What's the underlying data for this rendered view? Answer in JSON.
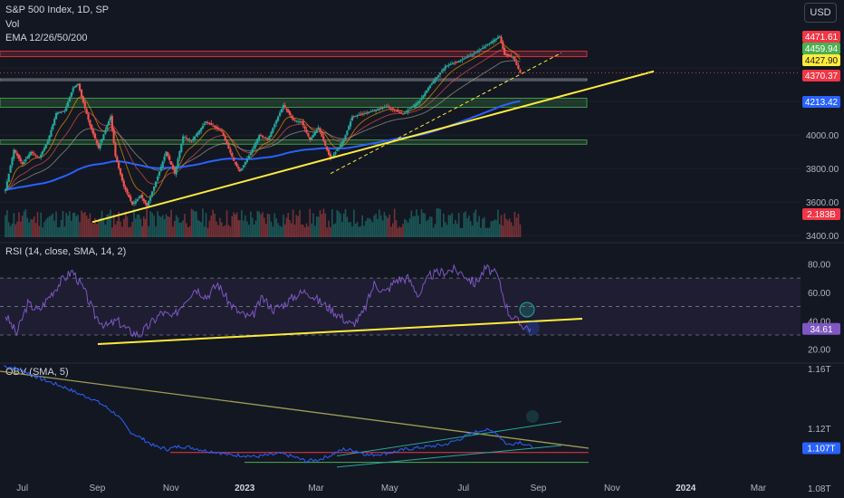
{
  "header": {
    "symbol_line": "S&P 500 Index, 1D, SP",
    "volume_label": "Vol",
    "ema_label": "EMA 12/26/50/200",
    "currency_button": "USD"
  },
  "rsi_panel": {
    "title": "RSI (14, close, SMA, 14, 2)"
  },
  "obv_panel": {
    "title": "OBV (SMA, 5)"
  },
  "colors": {
    "background": "#131722",
    "candle_up": "#26a69a",
    "candle_down": "#ef5350",
    "ema_200": "#2962ff",
    "trendline": "#ffeb3b",
    "rsi_line": "#7e57c2",
    "obv_line": "#2962ff"
  },
  "chart_data": [
    {
      "type": "candlestick",
      "title": "S&P 500 Index, 1D, SP",
      "x_tick_labels": [
        "Jul",
        "Sep",
        "Nov",
        "2023",
        "Mar",
        "May",
        "Jul",
        "Sep",
        "Nov",
        "2024",
        "Mar"
      ],
      "y_tick_labels": [
        "3400.00",
        "3600.00",
        "3800.00",
        "4000.00"
      ],
      "ylim": [
        3390,
        4600
      ],
      "price_labels": [
        {
          "label": "4471.61",
          "color": "#f23645"
        },
        {
          "label": "4459.94",
          "color": "#4caf50"
        },
        {
          "label": "4427.90",
          "color": "#ffeb3b"
        },
        {
          "label": "4370.37",
          "color": "#f23645"
        },
        {
          "label": "4213.42",
          "color": "#2962ff"
        },
        {
          "label": "2.183B",
          "color": "#f23645"
        }
      ],
      "close_series": [
        [
          "2022-06-17",
          3675
        ],
        [
          "2022-06-24",
          3911
        ],
        [
          "2022-07-01",
          3825
        ],
        [
          "2022-07-08",
          3899
        ],
        [
          "2022-07-15",
          3863
        ],
        [
          "2022-07-22",
          3962
        ],
        [
          "2022-07-29",
          4130
        ],
        [
          "2022-08-05",
          4145
        ],
        [
          "2022-08-12",
          4280
        ],
        [
          "2022-08-16",
          4305
        ],
        [
          "2022-08-19",
          4228
        ],
        [
          "2022-08-26",
          4057
        ],
        [
          "2022-09-02",
          3924
        ],
        [
          "2022-09-12",
          4110
        ],
        [
          "2022-09-16",
          3873
        ],
        [
          "2022-09-23",
          3693
        ],
        [
          "2022-09-30",
          3585
        ],
        [
          "2022-10-07",
          3639
        ],
        [
          "2022-10-12",
          3577
        ],
        [
          "2022-10-21",
          3752
        ],
        [
          "2022-10-28",
          3901
        ],
        [
          "2022-11-04",
          3770
        ],
        [
          "2022-11-11",
          3992
        ],
        [
          "2022-11-18",
          3965
        ],
        [
          "2022-11-30",
          4080
        ],
        [
          "2022-12-13",
          4019
        ],
        [
          "2022-12-23",
          3845
        ],
        [
          "2022-12-28",
          3783
        ],
        [
          "2023-01-06",
          3895
        ],
        [
          "2023-01-13",
          3999
        ],
        [
          "2023-01-20",
          3972
        ],
        [
          "2023-02-02",
          4179
        ],
        [
          "2023-02-10",
          4090
        ],
        [
          "2023-02-17",
          4079
        ],
        [
          "2023-02-24",
          3970
        ],
        [
          "2023-03-03",
          4045
        ],
        [
          "2023-03-13",
          3855
        ],
        [
          "2023-03-24",
          3971
        ],
        [
          "2023-03-31",
          4109
        ],
        [
          "2023-04-14",
          4137
        ],
        [
          "2023-04-28",
          4169
        ],
        [
          "2023-05-12",
          4124
        ],
        [
          "2023-05-26",
          4205
        ],
        [
          "2023-06-02",
          4282
        ],
        [
          "2023-06-16",
          4410
        ],
        [
          "2023-06-30",
          4450
        ],
        [
          "2023-07-14",
          4505
        ],
        [
          "2023-07-31",
          4589
        ],
        [
          "2023-08-04",
          4478
        ],
        [
          "2023-08-11",
          4464
        ],
        [
          "2023-08-17",
          4370
        ]
      ],
      "volume_label": "2.183B",
      "zones": [
        {
          "from": 4467,
          "to": 4500
        },
        {
          "from": 4325,
          "to": 4335
        },
        {
          "from": 4165,
          "to": 4220
        },
        {
          "from": 3945,
          "to": 3970
        }
      ]
    },
    {
      "type": "line",
      "title": "RSI (14, close, SMA, 14, 2)",
      "y_tick_labels": [
        "20.00",
        "40.00",
        "60.00",
        "80.00"
      ],
      "ylim": [
        16,
        86
      ],
      "bands": [
        30,
        70
      ],
      "last_value_label": "34.61",
      "values": [
        44,
        31,
        52,
        47,
        58,
        68,
        75,
        62,
        44,
        36,
        40,
        33,
        30,
        38,
        46,
        42,
        54,
        63,
        57,
        66,
        53,
        45,
        42,
        56,
        48,
        52,
        58,
        61,
        54,
        49,
        43,
        37,
        45,
        66,
        60,
        69,
        70,
        58,
        72,
        74,
        76,
        73,
        66,
        77,
        72,
        46,
        38,
        34.61
      ]
    },
    {
      "type": "line",
      "title": "OBV (SMA, 5)",
      "y_tick_labels": [
        "1.16T",
        "1.12T",
        "1.08T"
      ],
      "ylim": [
        1.0745,
        1.1625
      ],
      "last_value_label": "1.107T",
      "values": [
        1.162,
        1.16,
        1.157,
        1.153,
        1.15,
        1.147,
        1.143,
        1.14,
        1.135,
        1.129,
        1.118,
        1.113,
        1.108,
        1.106,
        1.108,
        1.107,
        1.105,
        1.104,
        1.102,
        1.102,
        1.101,
        1.102,
        1.103,
        1.101,
        1.098,
        1.099,
        1.102,
        1.106,
        1.105,
        1.102,
        1.103,
        1.104,
        1.106,
        1.107,
        1.108,
        1.109,
        1.112,
        1.116,
        1.119,
        1.118,
        1.109,
        1.111,
        1.107
      ]
    }
  ]
}
